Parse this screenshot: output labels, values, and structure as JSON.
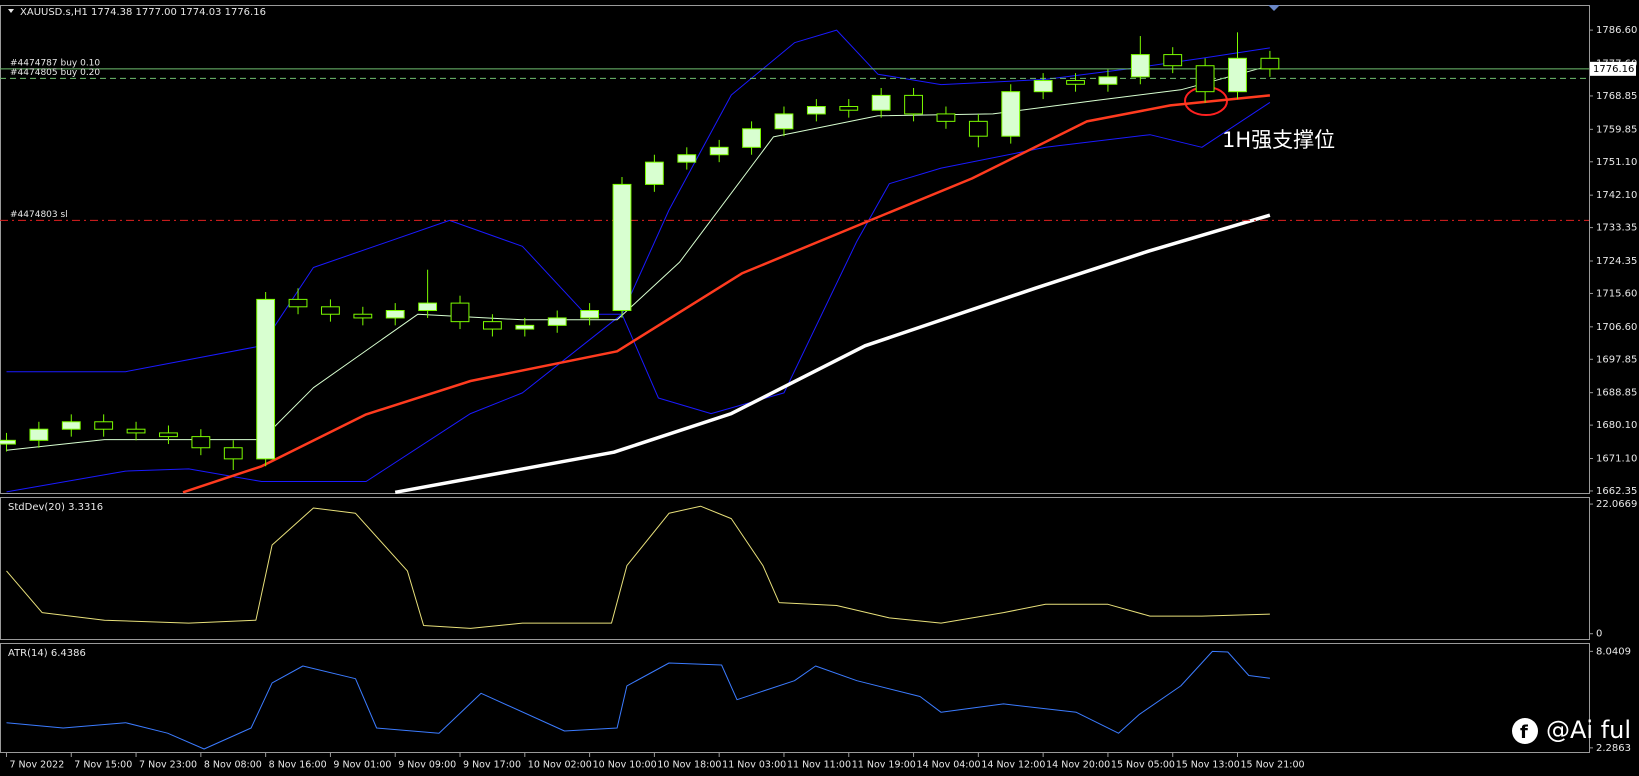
{
  "header": "XAUUSD.s,H1  1774.38 1777.00 1774.03 1776.16",
  "annotation": "1H强支撑位",
  "watermark": "@Ai ful",
  "chart_data": [
    {
      "type": "candlestick",
      "xlim": [
        -0.8,
        195.4
      ],
      "ylim": [
        1661.8,
        1793.1
      ],
      "xticks": [
        {
          "value": 0,
          "label": "7 Nov 2022"
        },
        {
          "value": 8,
          "label": "7 Nov 15:00"
        },
        {
          "value": 16,
          "label": "7 Nov 23:00"
        },
        {
          "value": 24,
          "label": "8 Nov 08:00"
        },
        {
          "value": 32,
          "label": "8 Nov 16:00"
        },
        {
          "value": 40,
          "label": "9 Nov 01:00"
        },
        {
          "value": 48,
          "label": "9 Nov 09:00"
        },
        {
          "value": 56,
          "label": "9 Nov 17:00"
        },
        {
          "value": 64,
          "label": "10 Nov 02:00"
        },
        {
          "value": 72,
          "label": "10 Nov 10:00"
        },
        {
          "value": 80,
          "label": "10 Nov 18:00"
        },
        {
          "value": 88,
          "label": "11 Nov 03:00"
        },
        {
          "value": 96,
          "label": "11 Nov 11:00"
        },
        {
          "value": 104,
          "label": "11 Nov 19:00"
        },
        {
          "value": 112,
          "label": "14 Nov 04:00"
        },
        {
          "value": 120,
          "label": "14 Nov 12:00"
        },
        {
          "value": 128,
          "label": "14 Nov 20:00"
        },
        {
          "value": 136,
          "label": "15 Nov 05:00"
        },
        {
          "value": 144,
          "label": "15 Nov 13:00"
        },
        {
          "value": 152,
          "label": "15 Nov 21:00"
        }
      ],
      "yticks": [
        {
          "value": 1662.35,
          "label": "1662.35"
        },
        {
          "value": 1671.1,
          "label": "1671.10"
        },
        {
          "value": 1680.1,
          "label": "1680.10"
        },
        {
          "value": 1688.85,
          "label": "1688.85"
        },
        {
          "value": 1697.85,
          "label": "1697.85"
        },
        {
          "value": 1706.6,
          "label": "1706.60"
        },
        {
          "value": 1715.6,
          "label": "1715.60"
        },
        {
          "value": 1724.35,
          "label": "1724.35"
        },
        {
          "value": 1733.35,
          "label": "1733.35"
        },
        {
          "value": 1742.1,
          "label": "1742.10"
        },
        {
          "value": 1751.1,
          "label": "1751.10"
        },
        {
          "value": 1759.85,
          "label": "1759.85"
        },
        {
          "value": 1768.85,
          "label": "1768.85"
        },
        {
          "value": 1777.6,
          "label": "1777.60"
        },
        {
          "value": 1786.6,
          "label": "1786.60"
        }
      ],
      "up_color": "#d8ffd0",
      "down_color": "#000000",
      "wick_color": "#7cfc00",
      "x": [
        0,
        4,
        8,
        12,
        16,
        20,
        24,
        28,
        32,
        36,
        40,
        44,
        48,
        52,
        56,
        60,
        64,
        68,
        72,
        76,
        80,
        84,
        88,
        92,
        96,
        100,
        104,
        108,
        112,
        116,
        120,
        124,
        128,
        132,
        136,
        140,
        144,
        148,
        152,
        156
      ],
      "open": [
        1675,
        1676,
        1679,
        1681,
        1679,
        1678,
        1677,
        1674,
        1671,
        1714,
        1712,
        1710,
        1709,
        1711,
        1713,
        1708,
        1706,
        1707,
        1709,
        1711,
        1745,
        1751,
        1753,
        1755,
        1760,
        1764,
        1766,
        1765,
        1769,
        1764,
        1762,
        1758,
        1770,
        1773,
        1772,
        1774,
        1780,
        1777,
        1770,
        1779
      ],
      "high": [
        1678,
        1681,
        1683,
        1683,
        1681,
        1680,
        1679,
        1676,
        1716,
        1717,
        1714,
        1712,
        1713,
        1722,
        1715,
        1710,
        1709,
        1711,
        1713,
        1747,
        1753,
        1755,
        1757,
        1762,
        1766,
        1768,
        1768,
        1771,
        1771,
        1766,
        1764,
        1772,
        1775,
        1775,
        1776,
        1785,
        1782,
        1779,
        1786,
        1781
      ],
      "low": [
        1673,
        1674,
        1677,
        1677,
        1676,
        1675,
        1672,
        1668,
        1669,
        1710,
        1708,
        1707,
        1707,
        1709,
        1706,
        1704,
        1704,
        1705,
        1707,
        1709,
        1743,
        1749,
        1751,
        1753,
        1758,
        1762,
        1763,
        1763,
        1762,
        1760,
        1755,
        1756,
        1768,
        1770,
        1770,
        1772,
        1775,
        1767,
        1768,
        1774
      ],
      "close": [
        1676,
        1679,
        1681,
        1679,
        1678,
        1677,
        1674,
        1671,
        1714,
        1712,
        1710,
        1709,
        1711,
        1713,
        1708,
        1706,
        1707,
        1709,
        1711,
        1745,
        1751,
        1753,
        1755,
        1760,
        1764,
        1766,
        1765,
        1769,
        1764,
        1762,
        1758,
        1770,
        1773,
        1772,
        1774,
        1780,
        1777,
        1770,
        1779,
        1776.16
      ],
      "series": [
        {
          "color": "#1a1aff",
          "width": 1,
          "x": [
            0,
            14.7,
            31.5,
            37.9,
            54.7,
            63.7,
            71.5,
            76,
            81.8,
            89.5,
            97.3,
            102.5,
            107.6,
            115.4,
            128.3,
            138.6,
            147.6,
            156
          ],
          "values": [
            1694.5,
            1694.5,
            1701.5,
            1722.6,
            1735.3,
            1728.3,
            1710,
            1710,
            1738.1,
            1769.1,
            1783.2,
            1786.6,
            1774.7,
            1771.9,
            1773.3,
            1776.2,
            1779,
            1781.8
          ]
        },
        {
          "color": "#1a1aff",
          "width": 1,
          "x": [
            0,
            14.7,
            22.5,
            31.5,
            44.4,
            57.3,
            63.7,
            76,
            80.5,
            87,
            96,
            105,
            109,
            115.4,
            128.3,
            141.2,
            147.6,
            156
          ],
          "values": [
            1662.1,
            1667.7,
            1668.3,
            1664.9,
            1664.9,
            1683.2,
            1688.8,
            1710,
            1687.4,
            1683.2,
            1688.8,
            1729.7,
            1745.2,
            1749.4,
            1755,
            1758.4,
            1755,
            1767.1
          ]
        },
        {
          "color": "#d8ffd0",
          "width": 1,
          "x": [
            0,
            12.1,
            31.5,
            37.9,
            50.8,
            63.7,
            75.4,
            83.1,
            94.7,
            107.6,
            121.8,
            134.7,
            145,
            156
          ],
          "values": [
            1673.3,
            1676.2,
            1676.2,
            1690.2,
            1710,
            1708.5,
            1708.5,
            1724,
            1757.8,
            1763.5,
            1764,
            1767.7,
            1770.5,
            1777
          ]
        },
        {
          "color": "#ff3b1f",
          "width": 2.5,
          "x": [
            21.8,
            31.5,
            44.4,
            57.3,
            75.4,
            90.8,
            106.3,
            119.2,
            133.4,
            143.7,
            156
          ],
          "values": [
            1662,
            1669,
            1683,
            1692,
            1700,
            1721,
            1735,
            1746.6,
            1762,
            1766.3,
            1769
          ]
        },
        {
          "color": "#ffffff",
          "width": 3.5,
          "x": [
            48,
            75,
            89.5,
            106,
            127,
            141,
            156
          ],
          "values": [
            1662,
            1672.8,
            1683.2,
            1701.5,
            1717,
            1727,
            1736.7
          ]
        }
      ],
      "order_lines": [
        {
          "label": "#4474787 buy 0.10",
          "value": 1776.16,
          "color": "#6fbf6f",
          "dash": "none"
        },
        {
          "label": "#4474805 buy 0.20",
          "value": 1773.6,
          "color": "#6fbf6f",
          "dash": "6 4"
        },
        {
          "label": "#4474803 sl",
          "value": 1735.3,
          "color": "#e02020",
          "dash": "8 4 2 4"
        }
      ],
      "price_tag": 1776.16
    },
    {
      "type": "line",
      "label": "StdDev(20) 3.3316",
      "xlim": [
        -0.8,
        195.4
      ],
      "ylim": [
        -0.9,
        23.1
      ],
      "yticks": [
        22.0669,
        0
      ],
      "series": [
        {
          "color": "#e8e07a",
          "width": 1,
          "x": [
            0,
            4.4,
            12.1,
            22.5,
            30.8,
            32.8,
            37.9,
            43.1,
            49.5,
            51.5,
            57.3,
            63.7,
            74.7,
            76.6,
            81.8,
            85.7,
            89.5,
            93.4,
            95.4,
            102.5,
            109,
            115.4,
            123.1,
            128.3,
            136,
            141.2,
            147.6,
            156
          ],
          "values": [
            10.7,
            3.6,
            2.3,
            1.8,
            2.3,
            15.1,
            21.4,
            20.5,
            10.7,
            1.4,
            0.9,
            1.8,
            1.8,
            11.6,
            20.5,
            21.7,
            19.6,
            11.6,
            5.3,
            4.8,
            2.7,
            1.8,
            3.6,
            5,
            5,
            3,
            3,
            3.3316
          ]
        }
      ]
    },
    {
      "type": "line",
      "label": "ATR(14) 6.4386",
      "xlim": [
        -0.8,
        195.4
      ],
      "ylim": [
        2.04,
        8.48
      ],
      "yticks": [
        8.0409,
        2.2863
      ],
      "series": [
        {
          "color": "#3b7bff",
          "width": 1,
          "x": [
            0,
            7,
            14.7,
            19.9,
            24.4,
            30.2,
            32.8,
            36.6,
            43.1,
            45.7,
            53.4,
            58.6,
            68.9,
            75.4,
            76.6,
            81.8,
            88.3,
            90.2,
            97.3,
            99.9,
            105,
            112.8,
            115.4,
            123.1,
            132.1,
            137.3,
            139.9,
            145,
            148.9,
            150.8,
            153.4,
            156
          ],
          "values": [
            3.79,
            3.47,
            3.79,
            3.16,
            2.22,
            3.47,
            6.16,
            7.17,
            6.41,
            3.47,
            3.16,
            5.54,
            3.29,
            3.47,
            5.98,
            7.35,
            7.23,
            5.16,
            6.29,
            7.17,
            6.29,
            5.35,
            4.41,
            4.91,
            4.41,
            3.16,
            4.29,
            5.98,
            8.04,
            8,
            6.6,
            6.4386
          ]
        }
      ]
    }
  ]
}
